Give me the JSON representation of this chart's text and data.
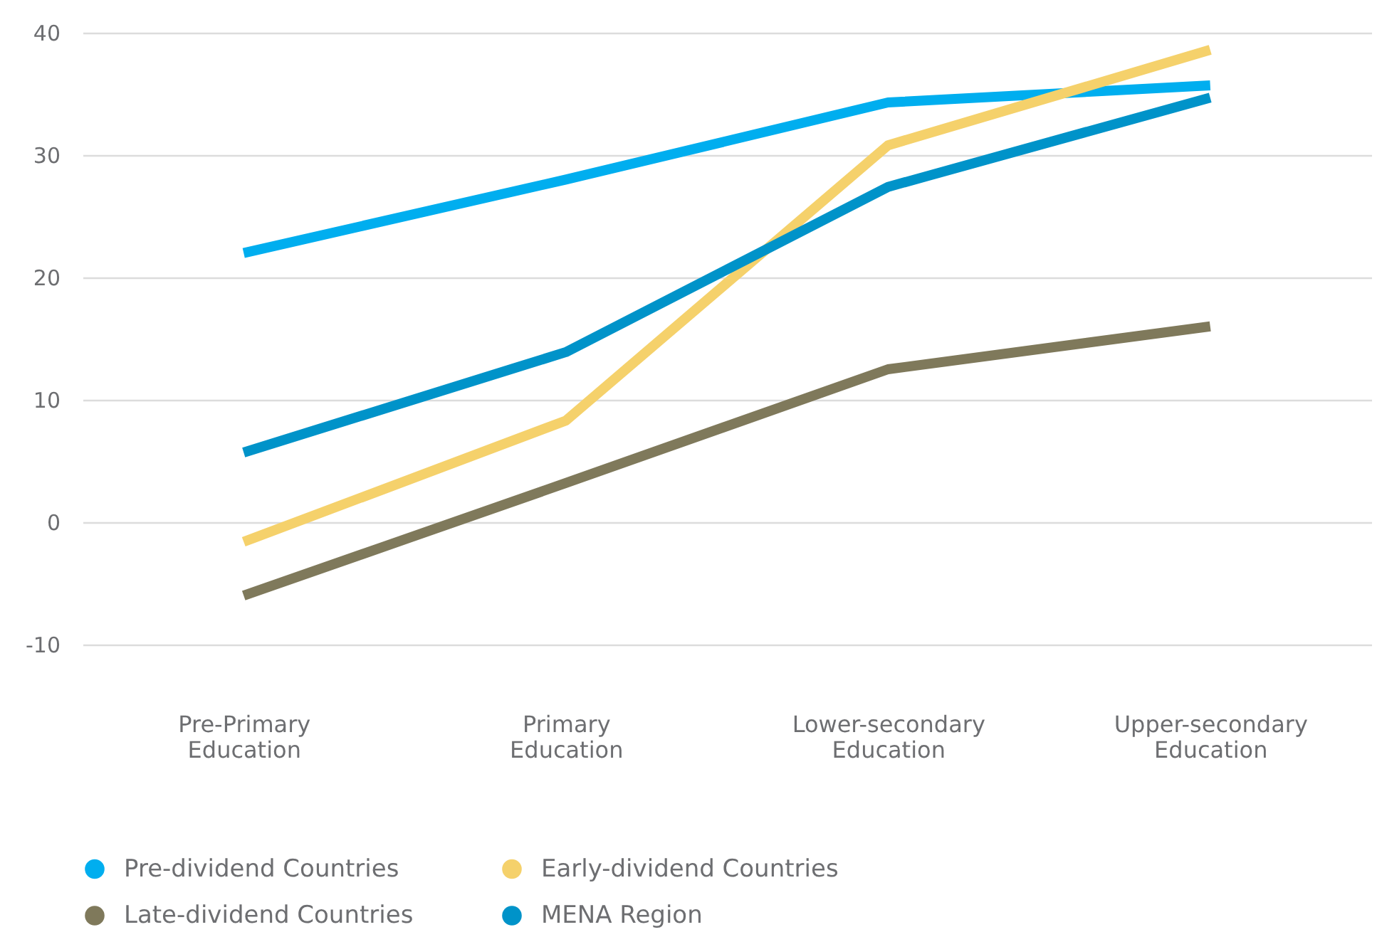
{
  "chart_data": {
    "type": "line",
    "categories": [
      "Pre-Primary Education",
      "Primary Education",
      "Lower-secondary Education",
      "Upper-secondary Education"
    ],
    "series": [
      {
        "name": "Pre-dividend Countries",
        "color": "#00aeef",
        "values": [
          22,
          28,
          34.3,
          35.7
        ]
      },
      {
        "name": "Early-dividend Countries",
        "color": "#f5d16b",
        "values": [
          -1.6,
          8.3,
          30.8,
          38.6
        ]
      },
      {
        "name": "Late-dividend Countries",
        "color": "#7f795b",
        "values": [
          -6,
          3.2,
          12.5,
          16
        ]
      },
      {
        "name": "MENA Region",
        "color": "#0093c9",
        "values": [
          5.7,
          13.9,
          27.4,
          34.7
        ]
      }
    ],
    "ylim": [
      -10,
      40
    ],
    "yticks": [
      -10,
      0,
      10,
      20,
      30,
      40
    ],
    "grid": "y",
    "legend": "bottom left",
    "line_style": "solid"
  }
}
